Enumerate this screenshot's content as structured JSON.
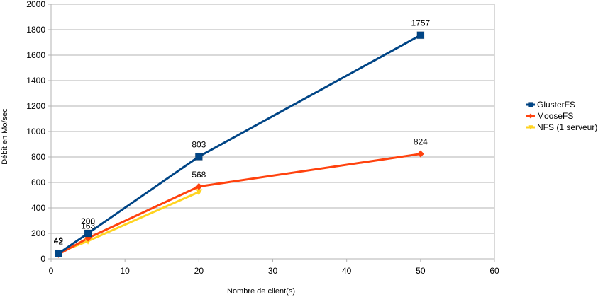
{
  "chart_data": {
    "type": "line",
    "xlabel": "Nombre de client(s)",
    "ylabel": "Débit en Mo/sec",
    "xlim": [
      0,
      60
    ],
    "ylim": [
      0,
      2000
    ],
    "xticks": [
      0,
      10,
      20,
      30,
      40,
      50,
      60
    ],
    "yticks": [
      0,
      200,
      400,
      600,
      800,
      1000,
      1200,
      1400,
      1600,
      1800,
      2000
    ],
    "grid": true,
    "legend_position": "right",
    "series": [
      {
        "name": "GlusterFS",
        "color": "#004586",
        "marker": "square",
        "points": [
          {
            "x": 1,
            "y": 42,
            "label": "42"
          },
          {
            "x": 5,
            "y": 200,
            "label": "200"
          },
          {
            "x": 20,
            "y": 803,
            "label": "803"
          },
          {
            "x": 50,
            "y": 1757,
            "label": "1757"
          }
        ]
      },
      {
        "name": "MooseFS",
        "color": "#ff420e",
        "marker": "diamond",
        "points": [
          {
            "x": 1,
            "y": 35,
            "label": ""
          },
          {
            "x": 5,
            "y": 163,
            "label": "163"
          },
          {
            "x": 20,
            "y": 568,
            "label": "568"
          },
          {
            "x": 50,
            "y": 824,
            "label": "824"
          }
        ]
      },
      {
        "name": "NFS (1 serveur)",
        "color": "#ffd320",
        "marker": "triangle",
        "points": [
          {
            "x": 1,
            "y": 49,
            "label": "49"
          },
          {
            "x": 5,
            "y": 140,
            "label": ""
          },
          {
            "x": 20,
            "y": 525,
            "label": ""
          }
        ]
      }
    ]
  }
}
